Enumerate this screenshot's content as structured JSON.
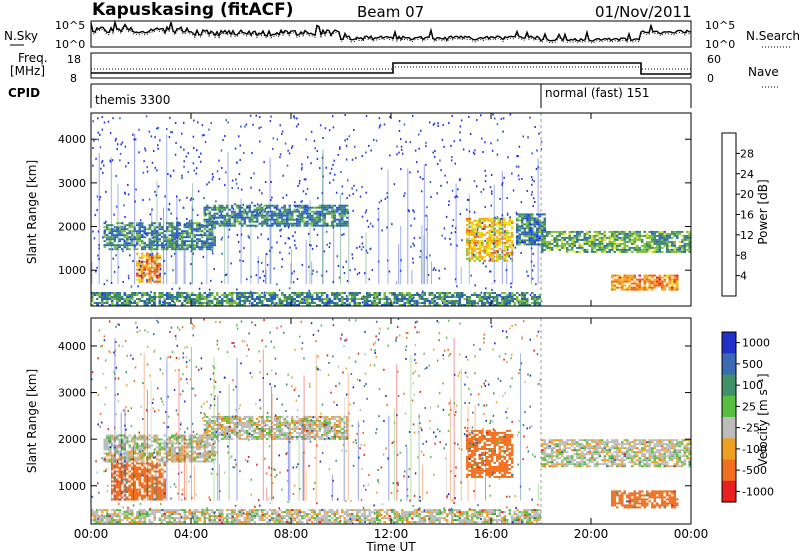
{
  "header": {
    "station_title": "Kapuskasing (fitACF)",
    "beam_title": "Beam 07",
    "date_title": "01/Nov/2011"
  },
  "status_panels": {
    "nsky_label": "N.Sky",
    "nsearch_label": "N.Search",
    "freq_label_line1": "Freq.",
    "freq_label_line2": "[MHz]",
    "nave_label": "Nave",
    "cpid_label": "CPID",
    "noise_ticks_left": [
      "10^5",
      "10^0"
    ],
    "noise_ticks_right": [
      "10^5",
      "10^0"
    ],
    "freq_ticks_left": [
      "18",
      "8"
    ],
    "nave_ticks_right": [
      "60",
      "0"
    ],
    "cpid_segments": [
      {
        "name": "themis 3300",
        "start_hour": 0,
        "end_hour": 18
      },
      {
        "name": "normal (fast) 151",
        "start_hour": 18,
        "end_hour": 24
      }
    ]
  },
  "chart_data": [
    {
      "type": "heatmap",
      "title": "",
      "xlabel": "Time UT",
      "ylabel": "Slant Range [km]",
      "x_range_hours": [
        0,
        24
      ],
      "x_ticks": [
        "00:00",
        "04:00",
        "08:00",
        "12:00",
        "16:00",
        "20:00",
        "00:00"
      ],
      "y_range_km": [
        180,
        4600
      ],
      "y_ticks": [
        1000,
        2000,
        3000,
        4000
      ],
      "colorbar": {
        "label": "Power [dB]",
        "ticks": [
          4,
          8,
          12,
          16,
          20,
          24,
          28
        ],
        "colors": [
          "#1e34e8",
          "#2a62c8",
          "#3f8c64",
          "#7cc03c",
          "#e8e01c",
          "#f4a81c",
          "#f2641c",
          "#e81c1c"
        ]
      },
      "echo_regions": [
        {
          "t_start": 0.0,
          "t_end": 18.0,
          "r_start": 200,
          "r_end": 500,
          "value": 10,
          "note": "ground scatter band"
        },
        {
          "t_start": 0.5,
          "t_end": 5.0,
          "r_start": 1500,
          "r_end": 2100,
          "value": 9
        },
        {
          "t_start": 4.5,
          "t_end": 10.3,
          "r_start": 2000,
          "r_end": 2500,
          "value": 9
        },
        {
          "t_start": 1.8,
          "t_end": 2.8,
          "r_start": 750,
          "r_end": 1400,
          "value": 24
        },
        {
          "t_start": 15.0,
          "t_end": 16.8,
          "r_start": 1200,
          "r_end": 2200,
          "value": 20
        },
        {
          "t_start": 17.0,
          "t_end": 18.2,
          "r_start": 1600,
          "r_end": 2300,
          "value": 8
        },
        {
          "t_start": 18.0,
          "t_end": 24.0,
          "r_start": 1400,
          "r_end": 1900,
          "value": 12
        },
        {
          "t_start": 20.8,
          "t_end": 23.5,
          "r_start": 550,
          "r_end": 900,
          "value": 24
        }
      ]
    },
    {
      "type": "heatmap",
      "title": "",
      "xlabel": "Time UT",
      "ylabel": "Slant Range [km]",
      "x_range_hours": [
        0,
        24
      ],
      "x_ticks": [
        "00:00",
        "04:00",
        "08:00",
        "12:00",
        "16:00",
        "20:00",
        "00:00"
      ],
      "y_range_km": [
        180,
        4600
      ],
      "y_ticks": [
        1000,
        2000,
        3000,
        4000
      ],
      "colorbar": {
        "label": "Velocity [m s⁻¹]",
        "ticks": [
          1000,
          500,
          100,
          25,
          -25,
          -100,
          -500,
          -1000
        ],
        "colors": [
          "#2030c8",
          "#3a6ab4",
          "#40906a",
          "#58c040",
          "#bcbcbc",
          "#f0a020",
          "#f07020",
          "#e82020"
        ]
      },
      "echo_regions": [
        {
          "t_start": 0.0,
          "t_end": 18.0,
          "r_start": 200,
          "r_end": 500,
          "value": 0,
          "note": "ground scatter band"
        },
        {
          "t_start": 0.5,
          "t_end": 5.0,
          "r_start": 1500,
          "r_end": 2100,
          "value": 0
        },
        {
          "t_start": 4.5,
          "t_end": 10.3,
          "r_start": 2000,
          "r_end": 2500,
          "value": 0
        },
        {
          "t_start": 0.8,
          "t_end": 3.0,
          "r_start": 700,
          "r_end": 1500,
          "value": -300
        },
        {
          "t_start": 15.0,
          "t_end": 16.8,
          "r_start": 1200,
          "r_end": 2200,
          "value": -300
        },
        {
          "t_start": 18.0,
          "t_end": 24.0,
          "r_start": 1400,
          "r_end": 2000,
          "value": 0
        },
        {
          "t_start": 20.8,
          "t_end": 23.5,
          "r_start": 550,
          "r_end": 900,
          "value": -200
        }
      ]
    }
  ]
}
